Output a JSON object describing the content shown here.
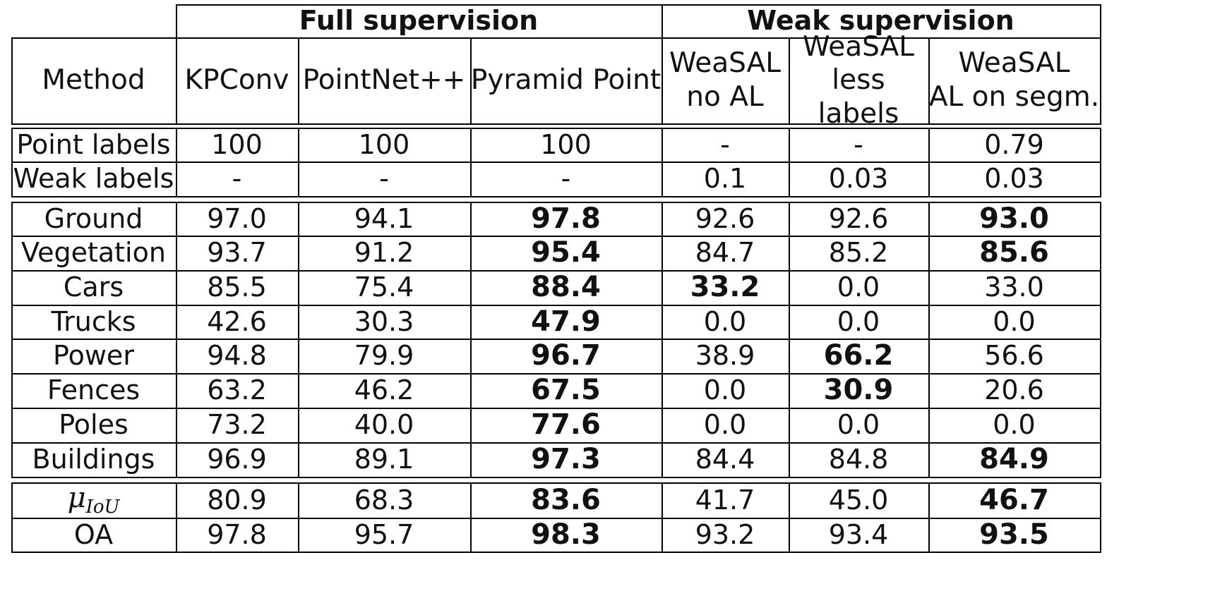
{
  "table": {
    "group_headers": [
      {
        "label": "Full supervision"
      },
      {
        "label": "Weak supervision"
      }
    ],
    "method_header": "Method",
    "columns": [
      {
        "line1": "KPConv",
        "line2": ""
      },
      {
        "line1": "PointNet++",
        "line2": ""
      },
      {
        "line1": "Pyramid Point",
        "line2": ""
      },
      {
        "line1": "WeaSAL",
        "line2": "no AL"
      },
      {
        "line1": "WeaSAL",
        "line2": "less labels"
      },
      {
        "line1": "WeaSAL",
        "line2": "AL on segm."
      }
    ],
    "label_rows": [
      {
        "label": "Point labels",
        "values": [
          "100",
          "100",
          "100",
          "-",
          "-",
          "0.79"
        ],
        "bold": []
      },
      {
        "label": "Weak labels",
        "values": [
          "-",
          "-",
          "-",
          "0.1",
          "0.03",
          "0.03"
        ],
        "bold": []
      }
    ],
    "class_rows": [
      {
        "label": "Ground",
        "values": [
          "97.0",
          "94.1",
          "97.8",
          "92.6",
          "92.6",
          "93.0"
        ],
        "bold": [
          2,
          5
        ]
      },
      {
        "label": "Vegetation",
        "values": [
          "93.7",
          "91.2",
          "95.4",
          "84.7",
          "85.2",
          "85.6"
        ],
        "bold": [
          2,
          5
        ]
      },
      {
        "label": "Cars",
        "values": [
          "85.5",
          "75.4",
          "88.4",
          "33.2",
          "0.0",
          "33.0"
        ],
        "bold": [
          2,
          3
        ]
      },
      {
        "label": "Trucks",
        "values": [
          "42.6",
          "30.3",
          "47.9",
          "0.0",
          "0.0",
          "0.0"
        ],
        "bold": [
          2
        ]
      },
      {
        "label": "Power",
        "values": [
          "94.8",
          "79.9",
          "96.7",
          "38.9",
          "66.2",
          "56.6"
        ],
        "bold": [
          2,
          4
        ]
      },
      {
        "label": "Fences",
        "values": [
          "63.2",
          "46.2",
          "67.5",
          "0.0",
          "30.9",
          "20.6"
        ],
        "bold": [
          2,
          4
        ]
      },
      {
        "label": "Poles",
        "values": [
          "73.2",
          "40.0",
          "77.6",
          "0.0",
          "0.0",
          "0.0"
        ],
        "bold": [
          2
        ]
      },
      {
        "label": "Buildings",
        "values": [
          "96.9",
          "89.1",
          "97.3",
          "84.4",
          "84.8",
          "84.9"
        ],
        "bold": [
          2,
          5
        ]
      }
    ],
    "summary_rows": [
      {
        "label": "μ",
        "label_sub": "IoU",
        "values": [
          "80.9",
          "68.3",
          "83.6",
          "41.7",
          "45.0",
          "46.7"
        ],
        "bold": [
          2,
          5
        ]
      },
      {
        "label": "OA",
        "label_sub": "",
        "values": [
          "97.8",
          "95.7",
          "98.3",
          "93.2",
          "93.4",
          "93.5"
        ],
        "bold": [
          2,
          5
        ]
      }
    ]
  }
}
